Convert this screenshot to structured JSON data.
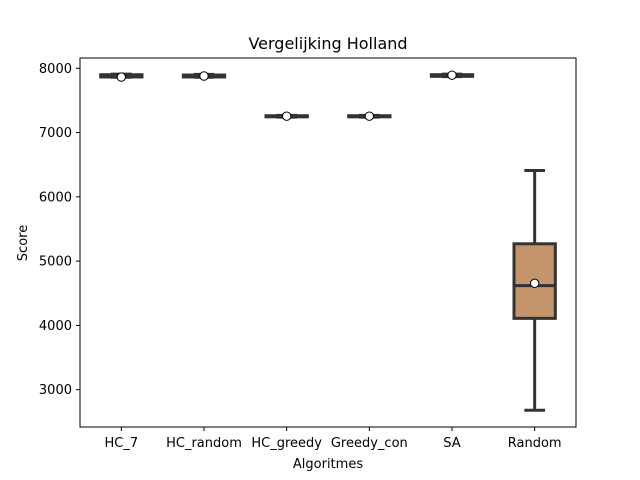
{
  "chart_data": {
    "type": "box",
    "title": "Vergelijking Holland",
    "xlabel": "Algoritmes",
    "ylabel": "Score",
    "ylim": [
      2420,
      8160
    ],
    "yticks": [
      3000,
      4000,
      5000,
      6000,
      7000,
      8000
    ],
    "categories": [
      "HC_7",
      "HC_random",
      "HC_greedy",
      "Greedy_con",
      "SA",
      "Random"
    ],
    "boxes": [
      {
        "category": "HC_7",
        "whisker_low": 7860,
        "q1": 7865,
        "median": 7878,
        "q3": 7900,
        "whisker_high": 7910,
        "mean": 7863,
        "color": "#8a9fc7"
      },
      {
        "category": "HC_random",
        "whisker_low": 7860,
        "q1": 7865,
        "median": 7878,
        "q3": 7895,
        "whisker_high": 7905,
        "mean": 7880,
        "color": "#a7c39b"
      },
      {
        "category": "HC_greedy",
        "whisker_low": 7240,
        "q1": 7245,
        "median": 7255,
        "q3": 7262,
        "whisker_high": 7268,
        "mean": 7255,
        "color": "#d19494"
      },
      {
        "category": "Greedy_con",
        "whisker_low": 7240,
        "q1": 7245,
        "median": 7255,
        "q3": 7262,
        "whisker_high": 7268,
        "mean": 7255,
        "color": "#b3a6cf"
      },
      {
        "category": "SA",
        "whisker_low": 7870,
        "q1": 7875,
        "median": 7885,
        "q3": 7900,
        "whisker_high": 7910,
        "mean": 7893,
        "color": "#cfc08a"
      },
      {
        "category": "Random",
        "whisker_low": 2680,
        "q1": 4110,
        "median": 4620,
        "q3": 5270,
        "whisker_high": 6410,
        "mean": 4655,
        "color": "#c4946a"
      }
    ],
    "grid": false,
    "legend": "none"
  }
}
